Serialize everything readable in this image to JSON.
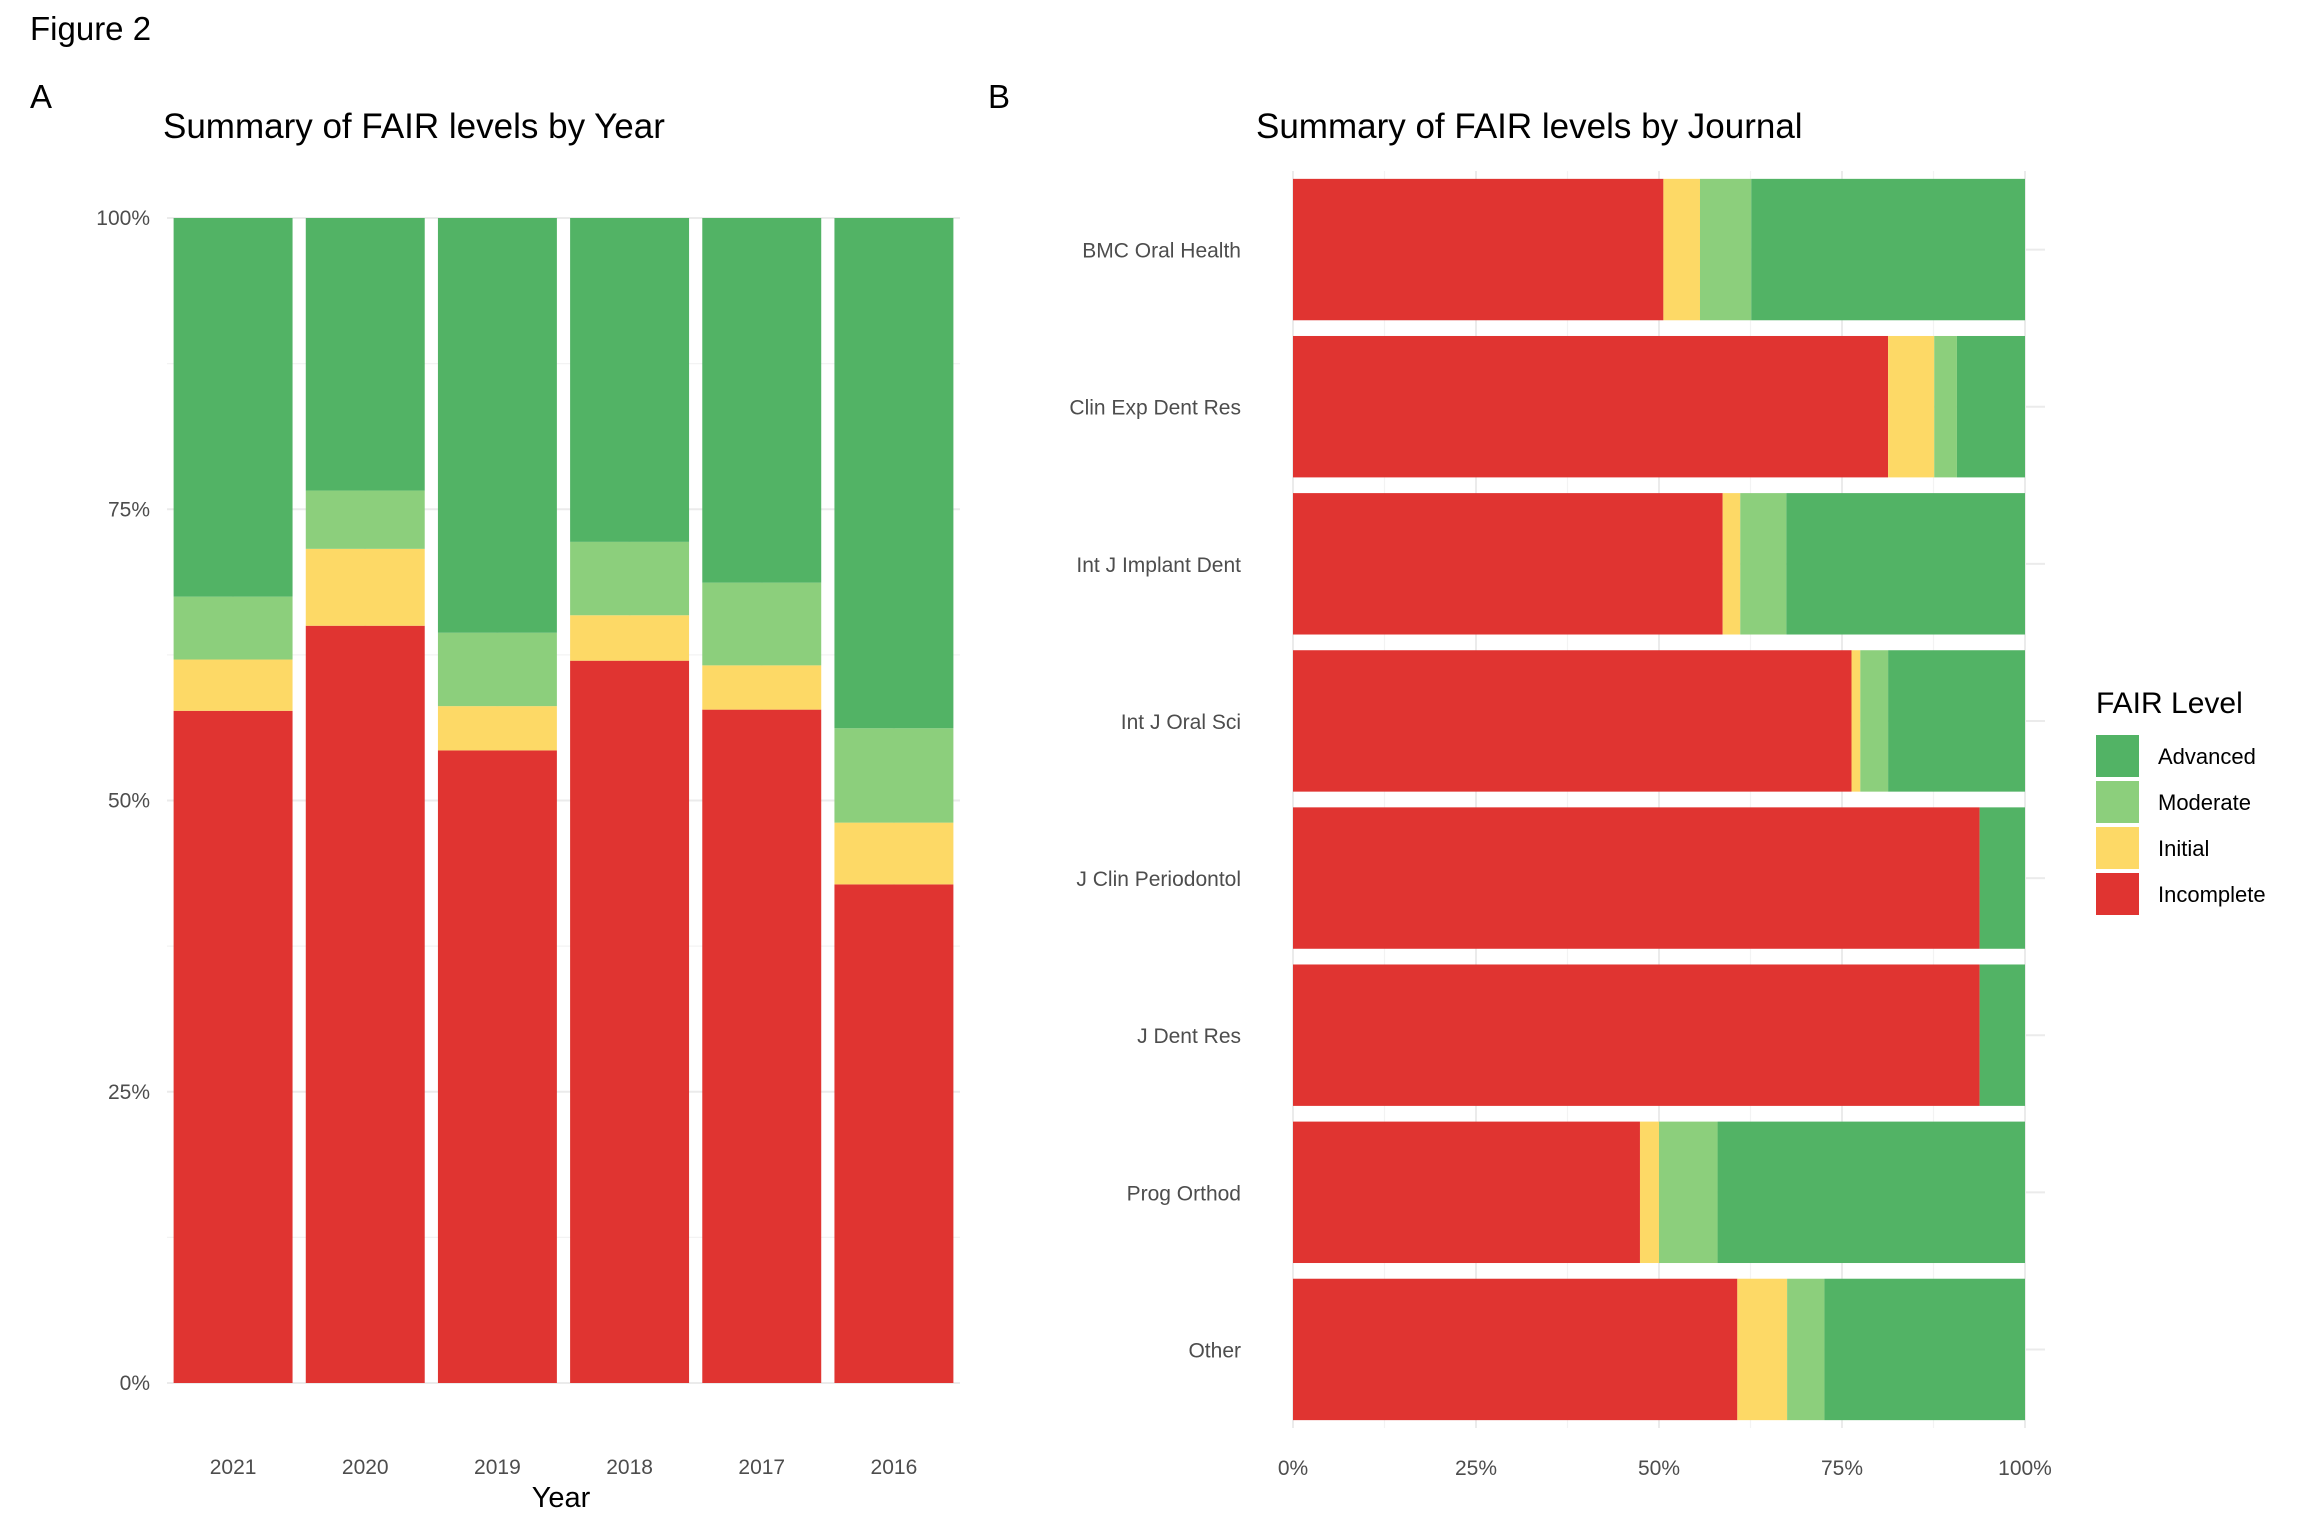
{
  "figure_title": "Figure 2",
  "panel_labels": [
    "A",
    "B"
  ],
  "legend": {
    "title": "FAIR Level",
    "items": [
      {
        "label": "Advanced",
        "color": "#52b365"
      },
      {
        "label": "Moderate",
        "color": "#8ccf7c"
      },
      {
        "label": "Initial",
        "color": "#fdd966"
      },
      {
        "label": "Incomplete",
        "color": "#e03431"
      }
    ]
  },
  "chart_data": [
    {
      "type": "bar",
      "orientation": "vertical",
      "stacked": true,
      "title": "Summary of FAIR levels by Year",
      "xlabel": "Year",
      "ylabel": "",
      "ylim": [
        0,
        100
      ],
      "y_ticks": [
        "0%",
        "25%",
        "50%",
        "75%",
        "100%"
      ],
      "grid": true,
      "categories": [
        "2021",
        "2020",
        "2019",
        "2018",
        "2017",
        "2016"
      ],
      "series": [
        {
          "name": "Incomplete",
          "color": "#e03431",
          "values": [
            57.7,
            65.0,
            54.3,
            62.0,
            57.8,
            42.8
          ]
        },
        {
          "name": "Initial",
          "color": "#fdd966",
          "values": [
            4.4,
            6.6,
            3.8,
            3.9,
            3.8,
            5.3
          ]
        },
        {
          "name": "Moderate",
          "color": "#8ccf7c",
          "values": [
            5.4,
            5.0,
            6.3,
            6.3,
            7.1,
            8.1
          ]
        },
        {
          "name": "Advanced",
          "color": "#52b365",
          "values": [
            32.5,
            23.4,
            35.6,
            27.8,
            31.3,
            43.8
          ]
        }
      ]
    },
    {
      "type": "bar",
      "orientation": "horizontal",
      "stacked": true,
      "title": "Summary of FAIR levels by Journal",
      "xlabel": "",
      "ylabel": "",
      "xlim": [
        0,
        100
      ],
      "x_ticks": [
        "0%",
        "25%",
        "50%",
        "75%",
        "100%"
      ],
      "grid": true,
      "legend_position": "right",
      "categories": [
        "BMC Oral Health",
        "Clin Exp Dent Res",
        "Int J Implant Dent",
        "Int J Oral Sci",
        "J Clin Periodontol",
        "J Dent Res",
        "Prog Orthod",
        "Other"
      ],
      "series": [
        {
          "name": "Incomplete",
          "color": "#e03431",
          "values": [
            50.6,
            81.3,
            58.7,
            76.3,
            93.8,
            93.8,
            47.4,
            60.7
          ]
        },
        {
          "name": "Initial",
          "color": "#fdd966",
          "values": [
            5.0,
            6.3,
            2.4,
            1.2,
            0,
            0,
            2.6,
            6.8
          ]
        },
        {
          "name": "Moderate",
          "color": "#8ccf7c",
          "values": [
            7.0,
            3.1,
            6.3,
            3.8,
            0,
            0,
            8.0,
            5.1
          ]
        },
        {
          "name": "Advanced",
          "color": "#52b365",
          "values": [
            37.4,
            9.3,
            32.6,
            18.7,
            6.2,
            6.2,
            42.0,
            27.4
          ]
        }
      ]
    }
  ]
}
